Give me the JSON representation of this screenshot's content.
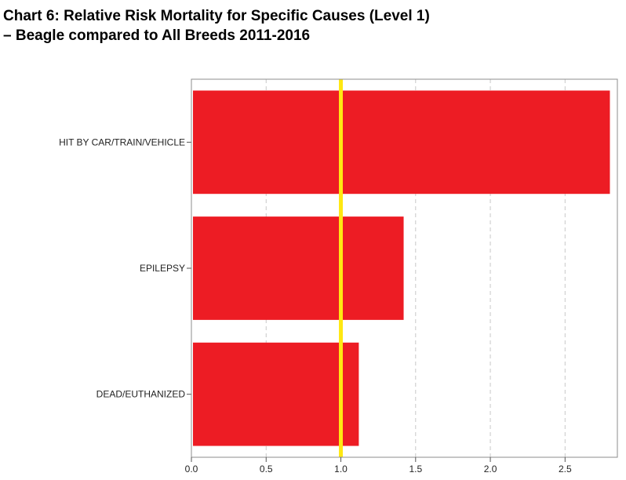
{
  "title_line1": "Chart 6: Relative Risk Mortality for Specific Causes (Level 1)",
  "title_line2": "–  Beagle compared to All Breeds 2011-2016",
  "chart_data": {
    "type": "bar",
    "orientation": "horizontal",
    "categories": [
      "HIT BY CAR/TRAIN/VEHICLE",
      "EPILEPSY",
      "DEAD/EUTHANIZED"
    ],
    "values": [
      2.8,
      1.42,
      1.12
    ],
    "xlim": [
      0,
      2.85
    ],
    "xticks": [
      0,
      0.5,
      1,
      1.5,
      2,
      2.5
    ],
    "xtick_labels": [
      "0.0",
      "0.5",
      "1.0",
      "1.5",
      "2.0",
      "2.5"
    ],
    "reference_line": 1.0,
    "grid": "vertical dashed",
    "colors": {
      "bar": "#ed1c24",
      "reference_line": "#ffe812",
      "grid": "#c8c8c8",
      "frame": "#8c8c8c"
    }
  }
}
